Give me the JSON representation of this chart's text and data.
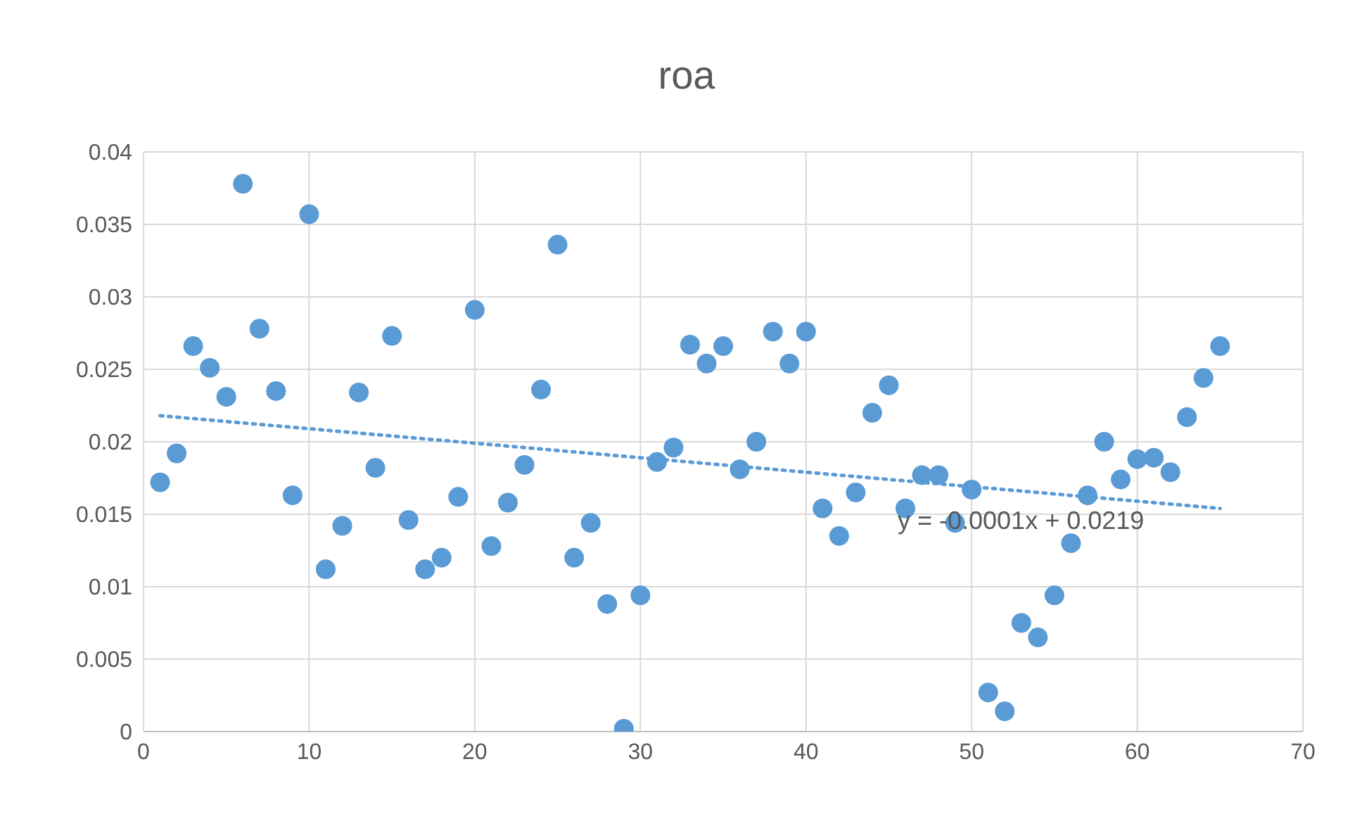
{
  "chart_data": {
    "type": "scatter",
    "title": "roa",
    "marker": "circle",
    "grid": true,
    "xlim": [
      0,
      70
    ],
    "xticks": [
      0,
      10,
      20,
      30,
      40,
      50,
      60,
      70
    ],
    "ylim": [
      0,
      0.04
    ],
    "yticks": [
      0,
      0.005,
      0.01,
      0.015,
      0.02,
      0.025,
      0.03,
      0.035,
      0.04
    ],
    "series": [
      {
        "color": "#5b9bd5",
        "x": [
          1,
          2,
          3,
          4,
          5,
          6,
          7,
          8,
          9,
          10,
          11,
          12,
          13,
          14,
          15,
          16,
          17,
          18,
          19,
          20,
          21,
          22,
          23,
          24,
          25,
          26,
          27,
          28,
          29,
          30,
          31,
          32,
          33,
          34,
          35,
          36,
          37,
          38,
          39,
          40,
          41,
          42,
          43,
          44,
          45,
          46,
          47,
          48,
          49,
          50,
          51,
          52,
          53,
          54,
          55,
          56,
          57,
          58,
          59,
          60,
          61,
          62,
          63,
          64,
          65
        ],
        "values": [
          0.0172,
          0.0192,
          0.0266,
          0.0251,
          0.0231,
          0.0378,
          0.0278,
          0.0235,
          0.0163,
          0.0357,
          0.0112,
          0.0142,
          0.0234,
          0.0182,
          0.0273,
          0.0146,
          0.0112,
          0.012,
          0.0162,
          0.0291,
          0.0128,
          0.0158,
          0.0184,
          0.0236,
          0.0336,
          0.012,
          0.0144,
          0.0088,
          0.0002,
          0.0094,
          0.0186,
          0.0196,
          0.0267,
          0.0254,
          0.0266,
          0.0181,
          0.02,
          0.0276,
          0.0254,
          0.0276,
          0.0154,
          0.0135,
          0.0165,
          0.022,
          0.0239,
          0.0154,
          0.0177,
          0.0177,
          0.0144,
          0.0167,
          0.0027,
          0.0014,
          0.0075,
          0.0065,
          0.0094,
          0.013,
          0.0163,
          0.02,
          0.0174,
          0.0188,
          0.0189,
          0.0179,
          0.0217,
          0.0244,
          0.0266
        ]
      },
      {
        "type": "line",
        "color": "#5b9bd5",
        "line_style": "dotted",
        "marker": "none",
        "x": [
          1,
          65
        ],
        "values": [
          0.0218,
          0.0154
        ]
      }
    ],
    "annotations": [
      "y = -0.0001x + 0.0219"
    ]
  }
}
